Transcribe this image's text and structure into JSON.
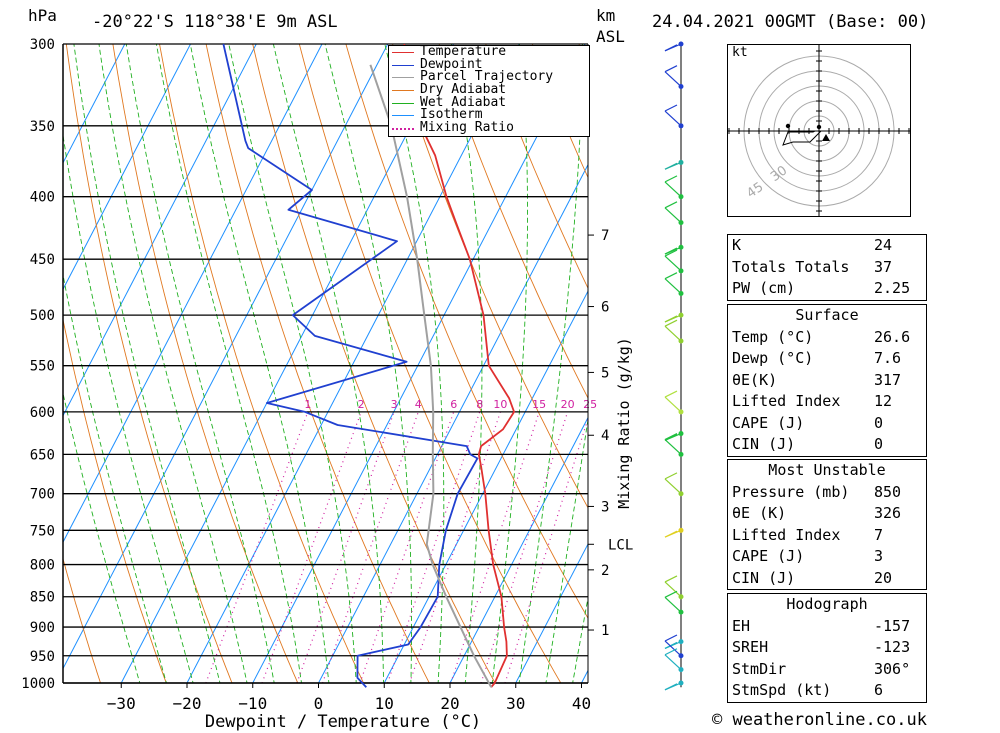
{
  "header": {
    "pressure_unit": "hPa",
    "location": "-20°22'S  118°38'E  9m  ASL",
    "km_label": "km",
    "asl_label": "ASL",
    "datetime": "24.04.2021  00GMT  (Base: 00)"
  },
  "chart_data": {
    "type": "line",
    "title": "-20°22'S 118°38'E 9m ASL",
    "xlabel": "Dewpoint / Temperature (°C)",
    "ylabel": "hPa",
    "x_ticks": [
      -30,
      -20,
      -10,
      0,
      10,
      20,
      30,
      40
    ],
    "pressure_levels": [
      300,
      350,
      400,
      450,
      500,
      550,
      600,
      650,
      700,
      750,
      800,
      850,
      900,
      950,
      1000
    ],
    "km_ticks": [
      {
        "label": "7",
        "p": 430
      },
      {
        "label": "6",
        "p": 492
      },
      {
        "label": "5",
        "p": 557
      },
      {
        "label": "4",
        "p": 627
      },
      {
        "label": "3",
        "p": 717
      },
      {
        "label": "2",
        "p": 808
      },
      {
        "label": "1",
        "p": 905
      }
    ],
    "lcl_label": "LCL",
    "lcl_p": 770,
    "mixing_ratio_axis_label": "Mixing Ratio (g/kg)",
    "mixing_ratio_values": [
      "1",
      "2",
      "3",
      "4",
      "6",
      "8",
      "10",
      "15",
      "20",
      "25"
    ],
    "legend": [
      "Temperature",
      "Dewpoint",
      "Parcel Trajectory",
      "Dry Adiabat",
      "Wet Adiabat",
      "Isotherm",
      "Mixing Ratio"
    ],
    "series": [
      {
        "name": "Temperature",
        "color": "#e03030",
        "points": [
          [
            1008,
            26.6
          ],
          [
            1000,
            26.8
          ],
          [
            950,
            26.5
          ],
          [
            925,
            25.3
          ],
          [
            900,
            23.8
          ],
          [
            850,
            21.0
          ],
          [
            800,
            17.2
          ],
          [
            750,
            13.8
          ],
          [
            700,
            10.4
          ],
          [
            665,
            7.6
          ],
          [
            650,
            6.3
          ],
          [
            640,
            6.0
          ],
          [
            620,
            8.0
          ],
          [
            600,
            8.3
          ],
          [
            585,
            6.5
          ],
          [
            550,
            0.8
          ],
          [
            500,
            -4.0
          ],
          [
            450,
            -10.5
          ],
          [
            420,
            -15.5
          ],
          [
            400,
            -19.0
          ],
          [
            370,
            -24.0
          ],
          [
            350,
            -28.5
          ],
          [
            300,
            -37.5
          ]
        ]
      },
      {
        "name": "Dewpoint",
        "color": "#2040d0",
        "points": [
          [
            1008,
            7.6
          ],
          [
            990,
            5.5
          ],
          [
            950,
            3.8
          ],
          [
            930,
            10.6
          ],
          [
            900,
            11.1
          ],
          [
            850,
            11.3
          ],
          [
            800,
            9.0
          ],
          [
            750,
            7.3
          ],
          [
            700,
            6.2
          ],
          [
            655,
            6.4
          ],
          [
            650,
            5.0
          ],
          [
            640,
            3.8
          ],
          [
            615,
            -17.5
          ],
          [
            600,
            -23.5
          ],
          [
            590,
            -30.0
          ],
          [
            546,
            -12.0
          ],
          [
            520,
            -28.0
          ],
          [
            500,
            -33.0
          ],
          [
            435,
            -23.0
          ],
          [
            410,
            -42.0
          ],
          [
            395,
            -40.0
          ],
          [
            365,
            -53.0
          ],
          [
            360,
            -54.0
          ],
          [
            300,
            -65.0
          ]
        ]
      },
      {
        "name": "Parcel Trajectory",
        "color": "#a0a0a0",
        "points": [
          [
            1008,
            26.6
          ],
          [
            950,
            21.5
          ],
          [
            850,
            12.6
          ],
          [
            800,
            8.0
          ],
          [
            770,
            5.5
          ],
          [
            700,
            2.5
          ],
          [
            650,
            -0.7
          ],
          [
            600,
            -4.0
          ],
          [
            550,
            -8.0
          ],
          [
            500,
            -13.0
          ],
          [
            450,
            -18.5
          ],
          [
            400,
            -25.0
          ],
          [
            350,
            -33.0
          ],
          [
            312,
            -41.0
          ]
        ]
      }
    ]
  },
  "wind_barbs": [
    {
      "p": 300,
      "color": "#2040d0"
    },
    {
      "p": 325,
      "color": "#2040d0"
    },
    {
      "p": 350,
      "color": "#2040d0"
    },
    {
      "p": 375,
      "color": "#20b0a0"
    },
    {
      "p": 400,
      "color": "#20c040"
    },
    {
      "p": 420,
      "color": "#20c040"
    },
    {
      "p": 440,
      "color": "#20c040"
    },
    {
      "p": 460,
      "color": "#20c040"
    },
    {
      "p": 480,
      "color": "#20c040"
    },
    {
      "p": 500,
      "color": "#90d030"
    },
    {
      "p": 525,
      "color": "#90d030"
    },
    {
      "p": 600,
      "color": "#b0e040"
    },
    {
      "p": 625,
      "color": "#20c040"
    },
    {
      "p": 650,
      "color": "#20c040"
    },
    {
      "p": 700,
      "color": "#90d030"
    },
    {
      "p": 750,
      "color": "#e0d020"
    },
    {
      "p": 850,
      "color": "#90d030"
    },
    {
      "p": 875,
      "color": "#20c040"
    },
    {
      "p": 925,
      "color": "#20b0c0"
    },
    {
      "p": 950,
      "color": "#2040d0"
    },
    {
      "p": 975,
      "color": "#20b0c0"
    },
    {
      "p": 1000,
      "color": "#20b0c0"
    }
  ],
  "hodograph": {
    "unit_label": "kt",
    "ring_labels": [
      "45",
      "30"
    ],
    "trace": [
      [
        0,
        0
      ],
      [
        -4,
        0
      ],
      [
        -6,
        1
      ],
      [
        -31,
        1
      ],
      [
        -36,
        14
      ],
      [
        -26,
        11
      ],
      [
        -9,
        11
      ],
      [
        -3,
        5
      ],
      [
        2,
        0
      ]
    ]
  },
  "indices": {
    "rows": [
      {
        "key": "K",
        "value": "24"
      },
      {
        "key": "Totals Totals",
        "value": "37"
      },
      {
        "key": "PW (cm)",
        "value": "2.25"
      }
    ]
  },
  "surface": {
    "title": "Surface",
    "rows": [
      {
        "key": "Temp (°C)",
        "value": "26.6"
      },
      {
        "key": "Dewp (°C)",
        "value": "7.6"
      },
      {
        "key": "θE(K)",
        "value": "317"
      },
      {
        "key": "Lifted Index",
        "value": "12"
      },
      {
        "key": "CAPE (J)",
        "value": "0"
      },
      {
        "key": "CIN (J)",
        "value": "0"
      }
    ]
  },
  "most_unstable": {
    "title": "Most Unstable",
    "rows": [
      {
        "key": "Pressure (mb)",
        "value": "850"
      },
      {
        "key": "θE (K)",
        "value": "326"
      },
      {
        "key": "Lifted Index",
        "value": "7"
      },
      {
        "key": "CAPE (J)",
        "value": "3"
      },
      {
        "key": "CIN (J)",
        "value": "20"
      }
    ]
  },
  "hodograph_stats": {
    "title": "Hodograph",
    "rows": [
      {
        "key": "EH",
        "value": "-157"
      },
      {
        "key": "SREH",
        "value": "-123"
      },
      {
        "key": "StmDir",
        "value": "306°"
      },
      {
        "key": "StmSpd (kt)",
        "value": "6"
      }
    ]
  },
  "copyright": "© weatheronline.co.uk",
  "colors": {
    "temperature": "#e03030",
    "dewpoint": "#2040d0",
    "parcel": "#a0a0a0",
    "dry_adiabat": "#e07820",
    "wet_adiabat": "#20b020",
    "isotherm": "#1e90ff",
    "mixing_ratio": "#d020a0"
  }
}
